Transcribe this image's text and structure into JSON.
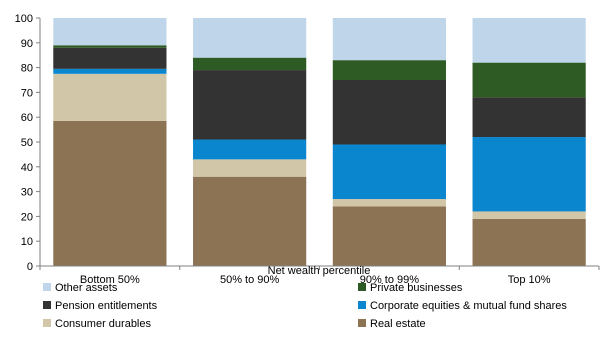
{
  "chart_data": {
    "type": "bar",
    "stacked": true,
    "categories": [
      "Bottom 50%",
      "50% to 90%",
      "90% to 99%",
      "Top 10%"
    ],
    "xlabel": "Net wealth percentile",
    "ylabel": "",
    "ylim": [
      0,
      100
    ],
    "yticks": [
      0,
      10,
      20,
      30,
      40,
      50,
      60,
      70,
      80,
      90,
      100
    ],
    "grid": false,
    "legend_position": "bottom",
    "series": [
      {
        "name": "Real estate",
        "color": "#8c7354",
        "values": [
          58.5,
          36,
          24,
          19
        ]
      },
      {
        "name": "Consumer durables",
        "color": "#d1c6a7",
        "values": [
          19,
          7,
          3,
          3
        ]
      },
      {
        "name": "Corporate equities & mutual fund shares",
        "color": "#0a86cf",
        "values": [
          2,
          8,
          22,
          30
        ]
      },
      {
        "name": "Pension entitlements",
        "color": "#333333",
        "values": [
          8.5,
          28,
          26,
          16
        ]
      },
      {
        "name": "Private businesses",
        "color": "#2e5a23",
        "values": [
          1,
          5,
          8,
          14
        ]
      },
      {
        "name": "Other assets",
        "color": "#bfd6ea",
        "values": [
          11,
          16,
          17,
          18
        ]
      }
    ],
    "legend_order": [
      "Other assets",
      "Private businesses",
      "Pension entitlements",
      "Corporate equities & mutual fund shares",
      "Consumer durables",
      "Real estate"
    ]
  }
}
